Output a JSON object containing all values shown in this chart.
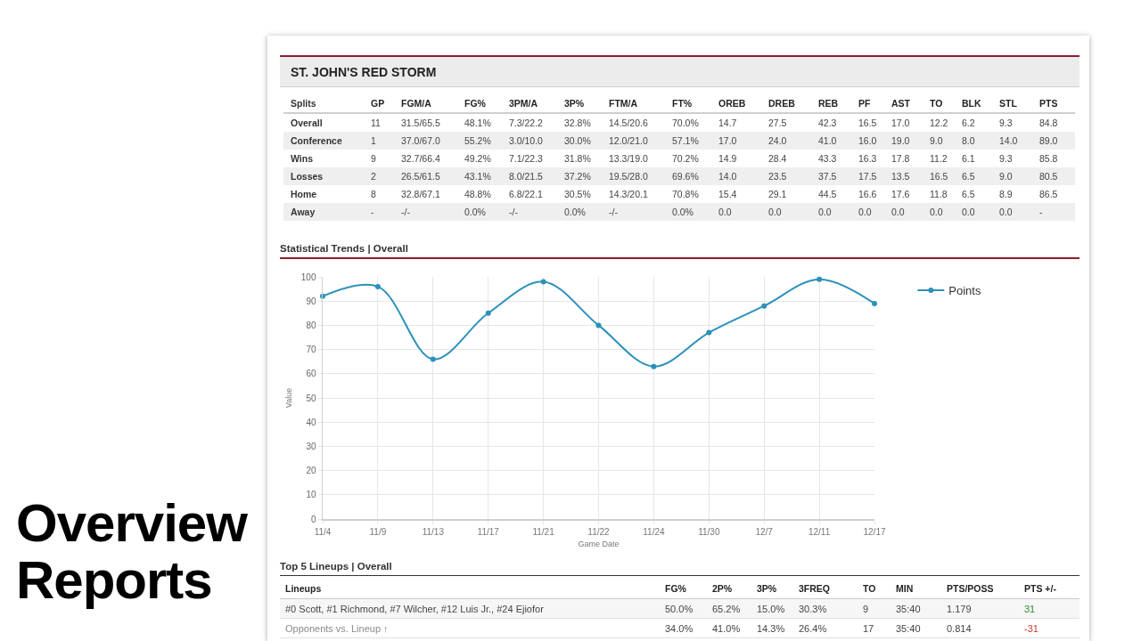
{
  "chart_data": [
    {
      "type": "other",
      "title": "ST. JOHN'S RED STORM",
      "categories": [
        "Splits",
        "GP",
        "FGM/A",
        "FG%",
        "3PM/A",
        "3P%",
        "FTM/A",
        "FT%",
        "OREB",
        "DREB",
        "REB",
        "PF",
        "AST",
        "TO",
        "BLK",
        "STL",
        "PTS"
      ],
      "y_categories": [
        "Overall",
        "Conference",
        "Wins",
        "Losses",
        "Home",
        "Away"
      ],
      "cell_labels": [
        [
          "11",
          "31.5/65.5",
          "48.1%",
          "7.3/22.2",
          "32.8%",
          "14.5/20.6",
          "70.0%",
          "14.7",
          "27.5",
          "42.3",
          "16.5",
          "17.0",
          "12.2",
          "6.2",
          "9.3",
          "84.8"
        ],
        [
          "1",
          "37.0/67.0",
          "55.2%",
          "3.0/10.0",
          "30.0%",
          "12.0/21.0",
          "57.1%",
          "17.0",
          "24.0",
          "41.0",
          "16.0",
          "19.0",
          "9.0",
          "8.0",
          "14.0",
          "89.0"
        ],
        [
          "9",
          "32.7/66.4",
          "49.2%",
          "7.1/22.3",
          "31.8%",
          "13.3/19.0",
          "70.2%",
          "14.9",
          "28.4",
          "43.3",
          "16.3",
          "17.8",
          "11.2",
          "6.1",
          "9.3",
          "85.8"
        ],
        [
          "2",
          "26.5/61.5",
          "43.1%",
          "8.0/21.5",
          "37.2%",
          "19.5/28.0",
          "69.6%",
          "14.0",
          "23.5",
          "37.5",
          "17.5",
          "13.5",
          "16.5",
          "6.5",
          "9.0",
          "80.5"
        ],
        [
          "8",
          "32.8/67.1",
          "48.8%",
          "6.8/22.1",
          "30.5%",
          "14.3/20.1",
          "70.8%",
          "15.4",
          "29.1",
          "44.5",
          "16.6",
          "17.6",
          "11.8",
          "6.5",
          "8.9",
          "86.5"
        ],
        [
          "-",
          "-/-",
          "0.0%",
          "-/-",
          "0.0%",
          "-/-",
          "0.0%",
          "0.0",
          "0.0",
          "0.0",
          "0.0",
          "0.0",
          "0.0",
          "0.0",
          "0.0",
          "-"
        ]
      ]
    },
    {
      "type": "line",
      "title": "Statistical Trends | Overall",
      "xlabel": "Game Date",
      "ylabel": "Value",
      "categories": [
        "11/4",
        "11/9",
        "11/13",
        "11/17",
        "11/21",
        "11/22",
        "11/24",
        "11/30",
        "12/7",
        "12/11",
        "12/17"
      ],
      "series": [
        {
          "name": "Points",
          "color": "#2b91bb",
          "values": [
            92,
            96,
            66,
            85,
            98,
            80,
            63,
            77,
            88,
            99,
            89
          ]
        }
      ],
      "ylim": [
        0,
        100
      ],
      "yticks": [
        0,
        10,
        20,
        30,
        40,
        50,
        60,
        70,
        80,
        90,
        100
      ],
      "grid": true,
      "legend": "top right",
      "marker": "circle",
      "line_style": "solid"
    },
    {
      "type": "other",
      "title": "Top 5 Lineups | Overall",
      "categories": [
        "Lineups",
        "FG%",
        "2P%",
        "3P%",
        "3FREQ",
        "TO",
        "MIN",
        "PTS/POSS",
        "PTS +/-"
      ],
      "y_categories": [
        "#0 Scott, #1 Richmond, #7 Wilcher, #12 Luis Jr., #24 Ejiofor",
        "Opponents vs. Lineup ↑"
      ],
      "cell_labels": [
        [
          "50.0%",
          "65.2%",
          "15.0%",
          "30.3%",
          "9",
          "35:40",
          "1.179",
          "31"
        ],
        [
          "34.0%",
          "41.0%",
          "14.3%",
          "26.4%",
          "17",
          "35:40",
          "0.814",
          "-31"
        ]
      ]
    },
    {
      "type": "other",
      "title": "Overview Reports"
    }
  ]
}
